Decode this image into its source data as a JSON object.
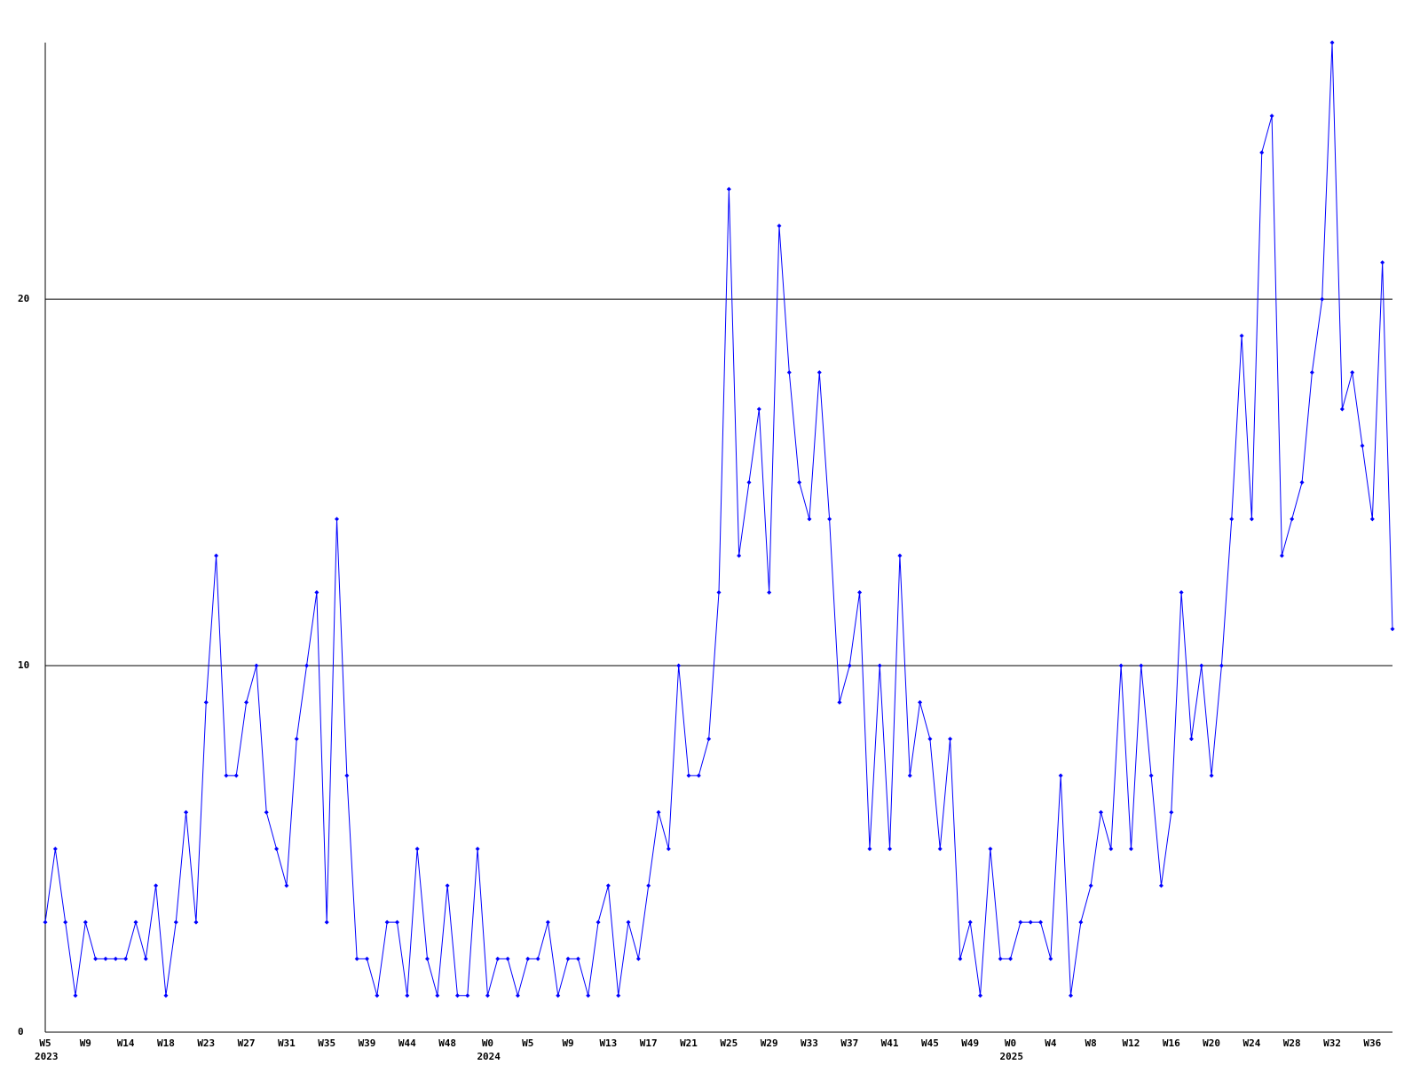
{
  "chart_data": {
    "type": "line",
    "categories": [
      "W5",
      null,
      null,
      null,
      "W9",
      null,
      null,
      null,
      "W14",
      null,
      null,
      null,
      "W18",
      null,
      null,
      null,
      "W23",
      null,
      null,
      null,
      "W27",
      null,
      null,
      null,
      "W31",
      null,
      null,
      null,
      "W35",
      null,
      null,
      null,
      "W39",
      null,
      null,
      null,
      "W44",
      null,
      null,
      null,
      "W48",
      null,
      null,
      null,
      "W0",
      null,
      null,
      null,
      "W5",
      null,
      null,
      null,
      "W9",
      null,
      null,
      null,
      "W13",
      null,
      null,
      null,
      "W17",
      null,
      null,
      null,
      "W21",
      null,
      null,
      null,
      "W25",
      null,
      null,
      null,
      "W29",
      null,
      null,
      null,
      "W33",
      null,
      null,
      null,
      "W37",
      null,
      null,
      null,
      "W41",
      null,
      null,
      null,
      "W45",
      null,
      null,
      null,
      "W49",
      null,
      null,
      null,
      "W0",
      null,
      null,
      null,
      "W4",
      null,
      null,
      null,
      "W8",
      null,
      null,
      null,
      "W12",
      null,
      null,
      null,
      "W16",
      null,
      null,
      null,
      "W20",
      null,
      null,
      null,
      "W24",
      null,
      null,
      null,
      "W28",
      null,
      null,
      null,
      "W32",
      null,
      null,
      null,
      "W36",
      null,
      null
    ],
    "year_labels": [
      {
        "label": "2023",
        "start": 0
      },
      {
        "label": "2024",
        "start": 44
      },
      {
        "label": "2025",
        "start": 96
      }
    ],
    "series": [
      {
        "color": "#0000ff",
        "values": [
          3,
          5,
          3,
          1,
          3,
          2,
          2,
          2,
          2,
          3,
          2,
          4,
          1,
          3,
          6,
          3,
          9,
          13,
          7,
          7,
          9,
          10,
          6,
          5,
          4,
          8,
          10,
          12,
          3,
          14,
          7,
          2,
          2,
          1,
          3,
          3,
          1,
          5,
          2,
          1,
          4,
          1,
          1,
          5,
          1,
          2,
          2,
          1,
          2,
          2,
          3,
          1,
          2,
          2,
          1,
          3,
          4,
          1,
          3,
          2,
          4,
          6,
          5,
          10,
          7,
          7,
          8,
          12,
          23,
          13,
          15,
          17,
          12,
          22,
          18,
          15,
          14,
          18,
          14,
          9,
          10,
          12,
          5,
          10,
          5,
          13,
          7,
          9,
          8,
          5,
          8,
          2,
          3,
          1,
          5,
          2,
          2,
          3,
          3,
          3,
          2,
          7,
          1,
          3,
          4,
          6,
          5,
          10,
          5,
          10,
          7,
          4,
          6,
          12,
          8,
          10,
          7,
          10,
          14,
          19,
          14,
          24,
          25,
          13,
          14,
          15,
          18,
          20,
          27,
          17,
          18,
          16,
          14,
          21,
          11
        ]
      }
    ],
    "ylim": [
      0,
      27
    ],
    "yticks": [
      0,
      10,
      20
    ],
    "grid": true
  }
}
